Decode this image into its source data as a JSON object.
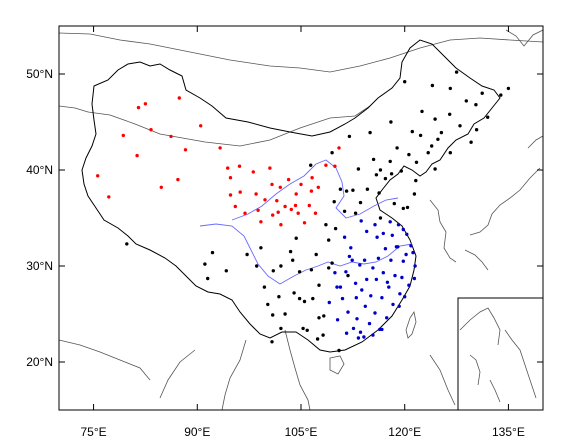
{
  "map": {
    "lon_ticks": [
      {
        "value": 75,
        "label": "75°E"
      },
      {
        "value": 90,
        "label": "90°E"
      },
      {
        "value": 105,
        "label": "105°E"
      },
      {
        "value": 120,
        "label": "120°E"
      },
      {
        "value": 135,
        "label": "135°E"
      }
    ],
    "lat_ticks": [
      {
        "value": 20,
        "label": "20°N"
      },
      {
        "value": 30,
        "label": "30°N"
      },
      {
        "value": 40,
        "label": "40°N"
      },
      {
        "value": 50,
        "label": "50°N"
      }
    ],
    "extent": {
      "lon_min": 70,
      "lon_max": 140,
      "lat_min": 15,
      "lat_max": 55
    },
    "colors": {
      "red_group": "#ff0000",
      "blue_group": "#0000cc",
      "black_group": "#000000",
      "river": "#6a6aff",
      "coast": "#555555",
      "border": "#000000"
    },
    "stations": {
      "red": [
        [
          75.6,
          39.4
        ],
        [
          77.2,
          37.2
        ],
        [
          79.3,
          43.6
        ],
        [
          81.3,
          41.5
        ],
        [
          81.5,
          46.5
        ],
        [
          82.5,
          46.9
        ],
        [
          83.3,
          44.2
        ],
        [
          84.8,
          38.2
        ],
        [
          86.2,
          43.5
        ],
        [
          87.2,
          39.0
        ],
        [
          87.4,
          47.5
        ],
        [
          88.3,
          42.1
        ],
        [
          90.5,
          44.6
        ],
        [
          93.3,
          42.3
        ],
        [
          94.4,
          40.2
        ],
        [
          94.8,
          39.2
        ],
        [
          94.8,
          37.4
        ],
        [
          95.5,
          36.2
        ],
        [
          96.1,
          40.4
        ],
        [
          96.2,
          37.7
        ],
        [
          96.9,
          35.5
        ],
        [
          98.1,
          39.8
        ],
        [
          98.5,
          37.5
        ],
        [
          98.8,
          35.8
        ],
        [
          99.2,
          34.6
        ],
        [
          99.8,
          36.9
        ],
        [
          100.5,
          40.2
        ],
        [
          100.8,
          38.5
        ],
        [
          100.9,
          35.3
        ],
        [
          101.5,
          36.8
        ],
        [
          101.7,
          35.6
        ],
        [
          102.0,
          38.2
        ],
        [
          102.1,
          34.3
        ],
        [
          102.7,
          36.2
        ],
        [
          103.2,
          39.0
        ],
        [
          103.6,
          35.9
        ],
        [
          104.2,
          36.3
        ],
        [
          104.3,
          37.5
        ],
        [
          104.6,
          35.5
        ],
        [
          105.0,
          38.5
        ],
        [
          105.5,
          34.5
        ],
        [
          106.2,
          36.3
        ],
        [
          106.5,
          37.8
        ],
        [
          106.6,
          39.2
        ],
        [
          107.1,
          35.5
        ],
        [
          107.5,
          38.2
        ],
        [
          108.6,
          40.5
        ],
        [
          109.9,
          40.4
        ],
        [
          110.5,
          42.3
        ]
      ],
      "blue": [
        [
          109.9,
          29.3
        ],
        [
          110.7,
          27.8
        ],
        [
          111.0,
          26.6
        ],
        [
          111.5,
          29.4
        ],
        [
          111.8,
          25.2
        ],
        [
          112.4,
          30.6
        ],
        [
          112.6,
          23.5
        ],
        [
          112.9,
          28.2
        ],
        [
          113.0,
          26.7
        ],
        [
          113.1,
          24.5
        ],
        [
          113.3,
          22.5
        ],
        [
          113.5,
          30.1
        ],
        [
          113.8,
          27.5
        ],
        [
          114.1,
          22.6
        ],
        [
          114.2,
          30.6
        ],
        [
          114.3,
          25.8
        ],
        [
          114.5,
          28.6
        ],
        [
          114.9,
          24.0
        ],
        [
          115.1,
          26.9
        ],
        [
          115.4,
          29.8
        ],
        [
          115.7,
          25.1
        ],
        [
          115.9,
          28.6
        ],
        [
          116.2,
          30.8
        ],
        [
          116.4,
          23.4
        ],
        [
          116.7,
          26.7
        ],
        [
          116.9,
          29.3
        ],
        [
          117.2,
          31.8
        ],
        [
          117.4,
          24.6
        ],
        [
          117.7,
          27.8
        ],
        [
          118.0,
          30.6
        ],
        [
          118.3,
          26.0
        ],
        [
          118.6,
          29.0
        ],
        [
          119.0,
          32.0
        ],
        [
          119.2,
          25.8
        ],
        [
          119.3,
          27.1
        ],
        [
          119.6,
          28.8
        ],
        [
          119.8,
          30.5
        ],
        [
          120.0,
          26.8
        ],
        [
          120.2,
          31.2
        ],
        [
          120.6,
          28.0
        ],
        [
          120.9,
          32.1
        ],
        [
          121.4,
          28.7
        ],
        [
          121.5,
          30.0
        ],
        [
          121.2,
          31.4
        ],
        [
          111.3,
          33.0
        ],
        [
          112.2,
          31.9
        ],
        [
          113.7,
          34.7
        ],
        [
          114.5,
          33.6
        ],
        [
          115.7,
          34.3
        ],
        [
          116.9,
          33.4
        ],
        [
          117.9,
          34.6
        ],
        [
          119.1,
          34.3
        ],
        [
          120.3,
          33.3
        ],
        [
          118.8,
          32.0
        ],
        [
          110.3,
          24.4
        ],
        [
          111.6,
          23.0
        ],
        [
          113.6,
          23.1
        ],
        [
          115.4,
          22.8
        ],
        [
          116.7,
          23.4
        ],
        [
          117.5,
          28.3
        ],
        [
          109.1,
          26.2
        ],
        [
          110.2,
          27.8
        ],
        [
          112.0,
          31.0
        ],
        [
          116.0,
          33.0
        ],
        [
          119.8,
          33.8
        ],
        [
          118.2,
          33.2
        ]
      ],
      "black": [
        [
          79.8,
          32.3
        ],
        [
          91.1,
          30.2
        ],
        [
          91.5,
          28.7
        ],
        [
          92.2,
          31.4
        ],
        [
          94.2,
          29.5
        ],
        [
          97.2,
          31.2
        ],
        [
          98.6,
          30.0
        ],
        [
          99.2,
          31.9
        ],
        [
          99.7,
          27.8
        ],
        [
          100.2,
          26.0
        ],
        [
          100.8,
          22.1
        ],
        [
          100.9,
          24.9
        ],
        [
          101.8,
          26.8
        ],
        [
          102.1,
          30.0
        ],
        [
          102.7,
          25.0
        ],
        [
          103.8,
          30.6
        ],
        [
          104.0,
          27.2
        ],
        [
          104.3,
          32.9
        ],
        [
          104.8,
          26.6
        ],
        [
          104.8,
          29.4
        ],
        [
          105.3,
          23.5
        ],
        [
          105.5,
          26.3
        ],
        [
          106.5,
          29.6
        ],
        [
          106.7,
          26.6
        ],
        [
          107.2,
          31.2
        ],
        [
          107.4,
          22.4
        ],
        [
          107.6,
          28.0
        ],
        [
          108.2,
          22.8
        ],
        [
          108.3,
          24.8
        ],
        [
          108.6,
          34.3
        ],
        [
          109.0,
          32.7
        ],
        [
          109.5,
          30.3
        ],
        [
          109.8,
          36.7
        ],
        [
          110.0,
          33.9
        ],
        [
          110.5,
          21.2
        ],
        [
          110.7,
          38.0
        ],
        [
          111.3,
          35.7
        ],
        [
          111.6,
          37.8
        ],
        [
          112.5,
          37.9
        ],
        [
          112.9,
          35.5
        ],
        [
          113.3,
          40.1
        ],
        [
          113.6,
          36.6
        ],
        [
          114.6,
          38.0
        ],
        [
          115.5,
          41.1
        ],
        [
          115.9,
          39.5
        ],
        [
          116.3,
          37.6
        ],
        [
          116.5,
          35.0
        ],
        [
          116.5,
          40.0
        ],
        [
          117.2,
          39.1
        ],
        [
          117.9,
          40.9
        ],
        [
          118.1,
          39.6
        ],
        [
          118.5,
          36.5
        ],
        [
          118.9,
          42.3
        ],
        [
          119.5,
          39.9
        ],
        [
          119.8,
          36.0
        ],
        [
          120.4,
          36.1
        ],
        [
          120.6,
          41.6
        ],
        [
          121.4,
          37.5
        ],
        [
          121.6,
          38.9
        ],
        [
          121.7,
          40.8
        ],
        [
          122.3,
          43.6
        ],
        [
          123.4,
          41.8
        ],
        [
          123.9,
          42.5
        ],
        [
          124.4,
          40.1
        ],
        [
          124.4,
          45.3
        ],
        [
          124.8,
          43.2
        ],
        [
          125.3,
          43.9
        ],
        [
          126.5,
          45.8
        ],
        [
          126.6,
          41.8
        ],
        [
          126.6,
          48.5
        ],
        [
          127.5,
          50.2
        ],
        [
          128.0,
          44.6
        ],
        [
          128.9,
          47.2
        ],
        [
          129.6,
          42.9
        ],
        [
          130.3,
          46.8
        ],
        [
          130.4,
          44.2
        ],
        [
          131.2,
          48.0
        ],
        [
          132.0,
          45.5
        ],
        [
          133.9,
          47.8
        ],
        [
          135.0,
          48.5
        ],
        [
          106.4,
          40.5
        ],
        [
          103.5,
          31.5
        ],
        [
          107.6,
          24.6
        ],
        [
          105.9,
          23.3
        ],
        [
          124.0,
          48.8
        ],
        [
          122.5,
          46.1
        ],
        [
          120.0,
          49.2
        ],
        [
          118.0,
          45.0
        ],
        [
          121.1,
          44.0
        ],
        [
          115.0,
          43.9
        ],
        [
          112.0,
          43.5
        ],
        [
          109.5,
          41.8
        ],
        [
          111.8,
          29.0
        ],
        [
          109.0,
          29.8
        ],
        [
          102.1,
          23.5
        ],
        [
          101.0,
          29.5
        ]
      ]
    },
    "inset_label": ""
  }
}
